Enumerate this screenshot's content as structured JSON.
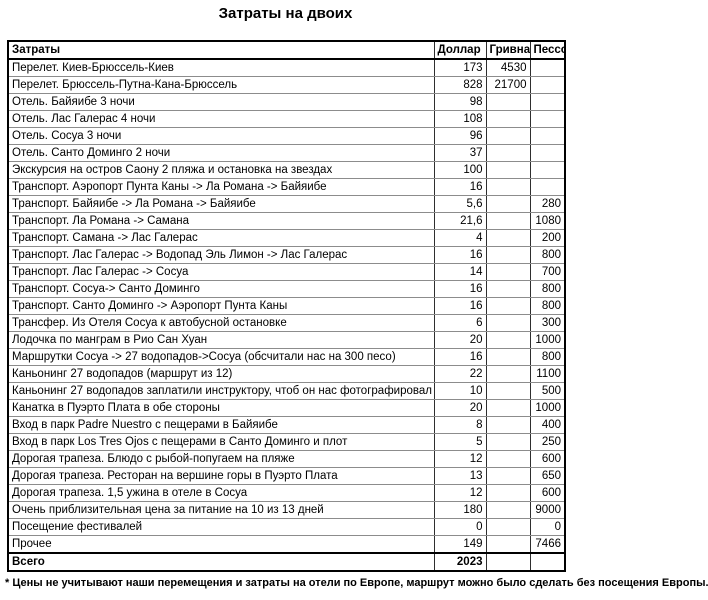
{
  "title": "Затраты на двоих",
  "table": {
    "headers": [
      "Затраты",
      "Доллар",
      "Гривна",
      "Пессо"
    ],
    "rows": [
      [
        "Перелет. Киев-Брюссель-Киев",
        "173",
        "4530",
        ""
      ],
      [
        "Перелет. Брюссель-Путна-Кана-Брюссель",
        "828",
        "21700",
        ""
      ],
      [
        "Отель. Байяибе 3 ночи",
        "98",
        "",
        ""
      ],
      [
        "Отель. Лас Галерас 4 ночи",
        "108",
        "",
        ""
      ],
      [
        "Отель. Сосуа 3 ночи",
        "96",
        "",
        ""
      ],
      [
        "Отель. Санто Доминго 2 ночи",
        "37",
        "",
        ""
      ],
      [
        "Экскурсия на остров Саону 2 пляжа и остановка на звездах",
        "100",
        "",
        ""
      ],
      [
        "Транспорт. Аэропорт Пунта Каны -> Ла Романа -> Байяибе",
        "16",
        "",
        ""
      ],
      [
        "Транспорт. Байяибе -> Ла Романа -> Байяибе",
        "5,6",
        "",
        "280"
      ],
      [
        "Транспорт. Ла Романа -> Самана",
        "21,6",
        "",
        "1080"
      ],
      [
        "Транспорт. Самана -> Лас Галерас",
        "4",
        "",
        "200"
      ],
      [
        "Транспорт. Лас Галерас -> Водопад Эль Лимон -> Лас Галерас",
        "16",
        "",
        "800"
      ],
      [
        "Транспорт. Лас Галерас -> Сосуа",
        "14",
        "",
        "700"
      ],
      [
        "Транспорт. Сосуа-> Санто Доминго",
        "16",
        "",
        "800"
      ],
      [
        "Транспорт. Санто Доминго -> Аэропорт Пунта Каны",
        "16",
        "",
        "800"
      ],
      [
        "Трансфер. Из Отеля Сосуа к автобусной остановке",
        "6",
        "",
        "300"
      ],
      [
        "Лодочка по манграм в Рио Сан Хуан",
        "20",
        "",
        "1000"
      ],
      [
        "Маршрутки Сосуа -> 27 водопадов->Сосуа (обсчитали нас на 300 песо)",
        "16",
        "",
        "800"
      ],
      [
        "Каньонинг 27 водопадов (маршрут из 12)",
        "22",
        "",
        "1100"
      ],
      [
        "Каньонинг 27 водопадов заплатили инструктору, чтоб он нас фотографировал",
        "10",
        "",
        "500"
      ],
      [
        "Канатка в Пуэрто Плата в обе стороны",
        "20",
        "",
        "1000"
      ],
      [
        "Вход в парк Padre Nuestro с пещерами в Байяибе",
        "8",
        "",
        "400"
      ],
      [
        "Вход в парк  Los Tres Ojos с пещерами в Санто Доминго и плот",
        "5",
        "",
        "250"
      ],
      [
        "Дорогая трапеза. Блюдо с рыбой-попугаем на пляже",
        "12",
        "",
        "600"
      ],
      [
        "Дорогая трапеза. Ресторан на вершине горы в Пуэрто Плата",
        "13",
        "",
        "650"
      ],
      [
        "Дорогая трапеза. 1,5 ужина в отеле в Сосуа",
        "12",
        "",
        "600"
      ],
      [
        "Очень приблизительная цена за питание на 10 из 13 дней",
        "180",
        "",
        "9000"
      ],
      [
        "Посещение фестивалей",
        "0",
        "",
        "0"
      ],
      [
        "Прочее",
        "149",
        "",
        "7466"
      ]
    ],
    "total": [
      "Всего",
      "2023",
      "",
      ""
    ]
  },
  "footnote": "* Цены не учитывают наши перемещения и затраты на отели по Европе, маршрут можно было сделать без посещения Европы.",
  "colors": {
    "text": "#000000",
    "background": "#ffffff",
    "border_outer": "#000000",
    "border_inner": "#8c8c8c"
  }
}
